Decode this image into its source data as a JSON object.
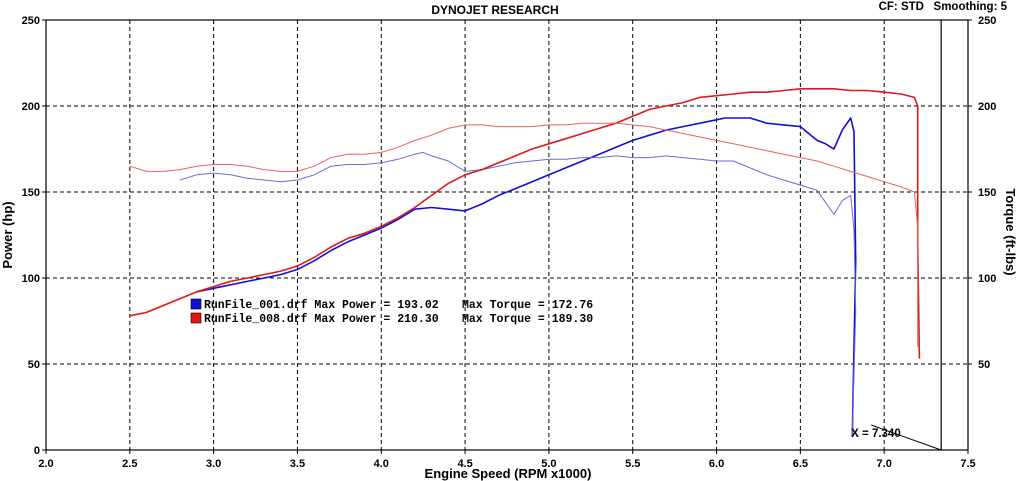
{
  "header": {
    "title": "DYNOJET RESEARCH",
    "corner_info": "CF: STD   Smoothing: 5"
  },
  "chart_data": {
    "type": "line",
    "title": "DYNOJET RESEARCH",
    "xlabel": "Engine Speed (RPM x1000)",
    "ylabel": "Power (hp)",
    "y2label": "Torque (ft-lbs)",
    "xlim": [
      2.0,
      7.5
    ],
    "ylim": [
      0,
      250
    ],
    "y2lim": [
      0,
      250
    ],
    "x_ticks": [
      "2.0",
      "2.5",
      "3.0",
      "3.5",
      "4.0",
      "4.5",
      "5.0",
      "5.5",
      "6.0",
      "6.5",
      "7.0",
      "7.5"
    ],
    "y_ticks": [
      "0",
      "50",
      "100",
      "150",
      "200",
      "250"
    ],
    "y2_ticks": [
      "50",
      "100",
      "150",
      "200",
      "250"
    ],
    "grid": true,
    "colors": {
      "run1": "#1010d8",
      "run2": "#e01818",
      "run1_light": "#6a6ad8",
      "run2_light": "#e86060"
    },
    "cursor": {
      "x": 7.34,
      "label": "X = 7.340"
    },
    "legend": [
      {
        "file": "RunFile_001.drf",
        "power_text": "Max Power = 193.02",
        "torque_text": "Max Torque = 172.76",
        "color": "#1010d8"
      },
      {
        "file": "RunFile_008.drf",
        "power_text": "Max Power = 210.30",
        "torque_text": "Max Torque = 189.30",
        "color": "#e01818"
      }
    ],
    "series": [
      {
        "name": "RunFile_001.drf Power",
        "color": "#1010d8",
        "width": 1.6,
        "points": [
          [
            2.9,
            92
          ],
          [
            3.0,
            94
          ],
          [
            3.2,
            98
          ],
          [
            3.4,
            102
          ],
          [
            3.5,
            105
          ],
          [
            3.6,
            110
          ],
          [
            3.7,
            116
          ],
          [
            3.8,
            121
          ],
          [
            3.9,
            125
          ],
          [
            4.0,
            129
          ],
          [
            4.1,
            134
          ],
          [
            4.2,
            140
          ],
          [
            4.3,
            141
          ],
          [
            4.4,
            140
          ],
          [
            4.5,
            139
          ],
          [
            4.6,
            143
          ],
          [
            4.7,
            148
          ],
          [
            4.8,
            152
          ],
          [
            4.9,
            156
          ],
          [
            5.0,
            160
          ],
          [
            5.1,
            164
          ],
          [
            5.2,
            168
          ],
          [
            5.3,
            172
          ],
          [
            5.4,
            176
          ],
          [
            5.5,
            180
          ],
          [
            5.6,
            183
          ],
          [
            5.7,
            186
          ],
          [
            5.8,
            188
          ],
          [
            5.9,
            190
          ],
          [
            6.0,
            192
          ],
          [
            6.05,
            193
          ],
          [
            6.2,
            193
          ],
          [
            6.3,
            190
          ],
          [
            6.4,
            189
          ],
          [
            6.5,
            188
          ],
          [
            6.55,
            184
          ],
          [
            6.6,
            180
          ],
          [
            6.65,
            178
          ],
          [
            6.7,
            175
          ],
          [
            6.75,
            186
          ],
          [
            6.8,
            193
          ],
          [
            6.82,
            185
          ],
          [
            6.83,
            110
          ],
          [
            6.82,
            60
          ],
          [
            6.81,
            8
          ]
        ]
      },
      {
        "name": "RunFile_001.drf Torque",
        "color": "#6a6ad8",
        "width": 1,
        "points": [
          [
            2.8,
            157
          ],
          [
            2.9,
            160
          ],
          [
            3.0,
            161
          ],
          [
            3.1,
            160
          ],
          [
            3.2,
            158
          ],
          [
            3.3,
            157
          ],
          [
            3.4,
            156
          ],
          [
            3.5,
            157
          ],
          [
            3.6,
            160
          ],
          [
            3.7,
            165
          ],
          [
            3.8,
            166
          ],
          [
            3.9,
            166
          ],
          [
            4.0,
            167
          ],
          [
            4.1,
            169
          ],
          [
            4.2,
            172
          ],
          [
            4.25,
            173
          ],
          [
            4.3,
            171
          ],
          [
            4.4,
            168
          ],
          [
            4.5,
            162
          ],
          [
            4.6,
            163
          ],
          [
            4.7,
            165
          ],
          [
            4.8,
            167
          ],
          [
            4.9,
            168
          ],
          [
            5.0,
            169
          ],
          [
            5.1,
            169
          ],
          [
            5.2,
            170
          ],
          [
            5.3,
            170
          ],
          [
            5.4,
            171
          ],
          [
            5.5,
            170
          ],
          [
            5.6,
            170
          ],
          [
            5.7,
            171
          ],
          [
            5.8,
            170
          ],
          [
            5.9,
            169
          ],
          [
            6.0,
            168
          ],
          [
            6.1,
            168
          ],
          [
            6.2,
            164
          ],
          [
            6.3,
            160
          ],
          [
            6.4,
            157
          ],
          [
            6.5,
            154
          ],
          [
            6.6,
            151
          ],
          [
            6.7,
            137
          ],
          [
            6.75,
            145
          ],
          [
            6.8,
            148
          ],
          [
            6.82,
            128
          ],
          [
            6.83,
            80
          ],
          [
            6.82,
            45
          ],
          [
            6.81,
            8
          ]
        ]
      },
      {
        "name": "RunFile_008.drf Power",
        "color": "#e01818",
        "width": 1.6,
        "points": [
          [
            2.5,
            78
          ],
          [
            2.6,
            80
          ],
          [
            2.7,
            84
          ],
          [
            2.8,
            88
          ],
          [
            2.9,
            92
          ],
          [
            3.0,
            95
          ],
          [
            3.1,
            98
          ],
          [
            3.2,
            100
          ],
          [
            3.3,
            102
          ],
          [
            3.4,
            104
          ],
          [
            3.5,
            107
          ],
          [
            3.6,
            112
          ],
          [
            3.7,
            118
          ],
          [
            3.8,
            123
          ],
          [
            3.9,
            126
          ],
          [
            4.0,
            130
          ],
          [
            4.1,
            135
          ],
          [
            4.2,
            141
          ],
          [
            4.3,
            148
          ],
          [
            4.4,
            155
          ],
          [
            4.5,
            160
          ],
          [
            4.6,
            163
          ],
          [
            4.7,
            167
          ],
          [
            4.8,
            171
          ],
          [
            4.9,
            175
          ],
          [
            5.0,
            178
          ],
          [
            5.1,
            181
          ],
          [
            5.2,
            184
          ],
          [
            5.3,
            187
          ],
          [
            5.4,
            190
          ],
          [
            5.5,
            194
          ],
          [
            5.6,
            198
          ],
          [
            5.7,
            200
          ],
          [
            5.8,
            202
          ],
          [
            5.9,
            205
          ],
          [
            6.0,
            206
          ],
          [
            6.1,
            207
          ],
          [
            6.2,
            208
          ],
          [
            6.3,
            208
          ],
          [
            6.4,
            209
          ],
          [
            6.5,
            210
          ],
          [
            6.6,
            210
          ],
          [
            6.7,
            210
          ],
          [
            6.8,
            209
          ],
          [
            6.9,
            209
          ],
          [
            7.0,
            208
          ],
          [
            7.1,
            207
          ],
          [
            7.18,
            205
          ],
          [
            7.2,
            200
          ],
          [
            7.2,
            120
          ],
          [
            7.21,
            53
          ]
        ]
      },
      {
        "name": "RunFile_008.drf Torque",
        "color": "#e86060",
        "width": 1,
        "points": [
          [
            2.5,
            165
          ],
          [
            2.6,
            162
          ],
          [
            2.7,
            162
          ],
          [
            2.8,
            163
          ],
          [
            2.9,
            165
          ],
          [
            3.0,
            166
          ],
          [
            3.1,
            166
          ],
          [
            3.2,
            165
          ],
          [
            3.3,
            163
          ],
          [
            3.4,
            162
          ],
          [
            3.5,
            162
          ],
          [
            3.6,
            165
          ],
          [
            3.7,
            170
          ],
          [
            3.8,
            172
          ],
          [
            3.9,
            172
          ],
          [
            4.0,
            173
          ],
          [
            4.1,
            176
          ],
          [
            4.2,
            180
          ],
          [
            4.3,
            183
          ],
          [
            4.4,
            187
          ],
          [
            4.5,
            189
          ],
          [
            4.6,
            189
          ],
          [
            4.7,
            188
          ],
          [
            4.8,
            188
          ],
          [
            4.9,
            188
          ],
          [
            5.0,
            189
          ],
          [
            5.1,
            189
          ],
          [
            5.2,
            190
          ],
          [
            5.3,
            190
          ],
          [
            5.4,
            190
          ],
          [
            5.5,
            189
          ],
          [
            5.6,
            188
          ],
          [
            5.7,
            186
          ],
          [
            5.8,
            184
          ],
          [
            5.9,
            182
          ],
          [
            6.0,
            180
          ],
          [
            6.1,
            178
          ],
          [
            6.2,
            176
          ],
          [
            6.3,
            174
          ],
          [
            6.4,
            172
          ],
          [
            6.5,
            170
          ],
          [
            6.6,
            168
          ],
          [
            6.7,
            165
          ],
          [
            6.8,
            162
          ],
          [
            6.9,
            159
          ],
          [
            7.0,
            156
          ],
          [
            7.1,
            153
          ],
          [
            7.18,
            150
          ],
          [
            7.2,
            130
          ],
          [
            7.2,
            60
          ]
        ]
      }
    ]
  }
}
